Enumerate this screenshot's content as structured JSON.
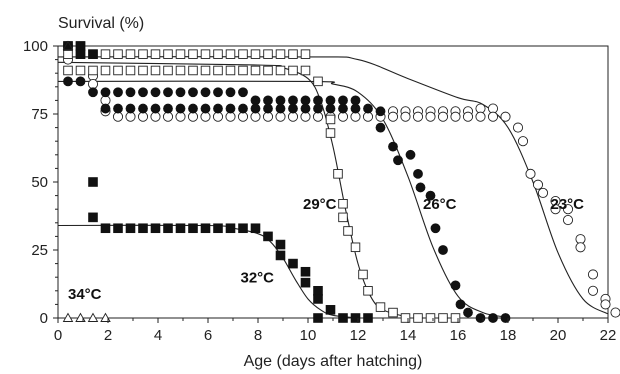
{
  "chart_data": {
    "type": "scatter",
    "title": "",
    "xlabel": "Age (days after hatching)",
    "ylabel": "Survival (%)",
    "xlim": [
      0,
      22
    ],
    "ylim": [
      0,
      100
    ],
    "xticks": [
      "0",
      "2",
      "4",
      "6",
      "8",
      "10",
      "12",
      "14",
      "16",
      "18",
      "20",
      "22"
    ],
    "yticks": [
      "0",
      "25",
      "50",
      "75",
      "100"
    ],
    "legend": "none",
    "grid": false,
    "series": [
      {
        "name": "23°C",
        "label_pos": [
          19.7,
          40
        ],
        "marker": "circle-open",
        "points": [
          [
            0.4,
            100
          ],
          [
            0.4,
            95
          ],
          [
            1.4,
            89
          ],
          [
            1.4,
            86
          ],
          [
            1.9,
            80
          ],
          [
            1.9,
            76
          ],
          [
            2.4,
            74
          ],
          [
            2.9,
            74
          ],
          [
            3.4,
            74
          ],
          [
            3.9,
            74
          ],
          [
            4.4,
            74
          ],
          [
            4.9,
            74
          ],
          [
            5.4,
            74
          ],
          [
            5.9,
            74
          ],
          [
            6.4,
            74
          ],
          [
            6.9,
            74
          ],
          [
            7.4,
            74
          ],
          [
            7.9,
            74
          ],
          [
            8.4,
            74
          ],
          [
            8.9,
            74
          ],
          [
            9.4,
            74
          ],
          [
            9.9,
            74
          ],
          [
            10.4,
            74
          ],
          [
            10.9,
            74
          ],
          [
            11.4,
            74
          ],
          [
            11.9,
            74
          ],
          [
            12.4,
            74
          ],
          [
            12.9,
            74
          ],
          [
            13.4,
            76
          ],
          [
            13.4,
            74
          ],
          [
            13.9,
            76
          ],
          [
            13.9,
            74
          ],
          [
            14.4,
            76
          ],
          [
            14.4,
            74
          ],
          [
            14.9,
            76
          ],
          [
            14.9,
            74
          ],
          [
            15.4,
            76
          ],
          [
            15.4,
            74
          ],
          [
            15.9,
            76
          ],
          [
            15.9,
            74
          ],
          [
            16.4,
            76
          ],
          [
            16.4,
            74
          ],
          [
            16.9,
            77
          ],
          [
            16.9,
            74
          ],
          [
            17.4,
            77
          ],
          [
            17.4,
            74
          ],
          [
            17.9,
            74
          ],
          [
            18.4,
            70
          ],
          [
            18.6,
            65
          ],
          [
            18.9,
            53
          ],
          [
            19.2,
            49
          ],
          [
            19.4,
            46
          ],
          [
            19.9,
            43
          ],
          [
            19.9,
            40
          ],
          [
            20.4,
            40
          ],
          [
            20.4,
            36
          ],
          [
            20.9,
            29
          ],
          [
            20.9,
            26
          ],
          [
            21.4,
            16
          ],
          [
            21.4,
            10
          ],
          [
            21.9,
            7
          ],
          [
            21.9,
            5
          ],
          [
            22.3,
            2
          ]
        ],
        "curve": [
          [
            0,
            96
          ],
          [
            10,
            96
          ],
          [
            12,
            95
          ],
          [
            14,
            88
          ],
          [
            16,
            81
          ],
          [
            17,
            78.5
          ],
          [
            18,
            70
          ],
          [
            19,
            50
          ],
          [
            20,
            24
          ],
          [
            21,
            7
          ],
          [
            22,
            1.5
          ]
        ]
      },
      {
        "name": "26°C",
        "label_pos": [
          14.6,
          40
        ],
        "marker": "circle-filled",
        "points": [
          [
            0.4,
            87
          ],
          [
            0.9,
            87
          ],
          [
            1.4,
            83
          ],
          [
            1.9,
            83
          ],
          [
            2.4,
            83
          ],
          [
            2.9,
            83
          ],
          [
            3.4,
            83
          ],
          [
            3.9,
            83
          ],
          [
            4.4,
            83
          ],
          [
            4.9,
            83
          ],
          [
            5.4,
            83
          ],
          [
            5.9,
            83
          ],
          [
            6.4,
            83
          ],
          [
            6.9,
            83
          ],
          [
            7.4,
            83
          ],
          [
            7.9,
            80
          ],
          [
            8.4,
            80
          ],
          [
            8.9,
            80
          ],
          [
            9.4,
            80
          ],
          [
            9.9,
            80
          ],
          [
            10.4,
            80
          ],
          [
            10.9,
            80
          ],
          [
            11.4,
            80
          ],
          [
            11.9,
            80
          ],
          [
            1.9,
            77
          ],
          [
            2.4,
            77
          ],
          [
            2.9,
            77
          ],
          [
            3.4,
            77
          ],
          [
            3.9,
            77
          ],
          [
            4.4,
            77
          ],
          [
            4.9,
            77
          ],
          [
            5.4,
            77
          ],
          [
            5.9,
            77
          ],
          [
            6.4,
            77
          ],
          [
            6.9,
            77
          ],
          [
            7.4,
            77
          ],
          [
            7.9,
            77
          ],
          [
            8.4,
            77
          ],
          [
            8.9,
            77
          ],
          [
            9.4,
            77
          ],
          [
            9.9,
            77
          ],
          [
            10.4,
            77
          ],
          [
            10.9,
            77
          ],
          [
            11.4,
            77
          ],
          [
            11.9,
            77
          ],
          [
            12.4,
            77
          ],
          [
            12.9,
            76
          ],
          [
            12.9,
            70
          ],
          [
            13.4,
            63
          ],
          [
            13.6,
            58
          ],
          [
            14.1,
            60
          ],
          [
            14.4,
            53
          ],
          [
            14.5,
            48
          ],
          [
            14.9,
            45
          ],
          [
            15.1,
            33
          ],
          [
            15.4,
            25
          ],
          [
            15.9,
            12
          ],
          [
            16.1,
            5
          ],
          [
            16.4,
            2
          ],
          [
            16.9,
            0
          ],
          [
            17.4,
            0
          ],
          [
            17.9,
            0
          ]
        ],
        "curve": [
          [
            0,
            87
          ],
          [
            10,
            87
          ],
          [
            11,
            86
          ],
          [
            12,
            83
          ],
          [
            13,
            73
          ],
          [
            14,
            52
          ],
          [
            15,
            26
          ],
          [
            16,
            8
          ],
          [
            17,
            2
          ],
          [
            18,
            0.3
          ]
        ]
      },
      {
        "name": "29°C",
        "label_pos": [
          9.8,
          40
        ],
        "marker": "square-open",
        "points": [
          [
            0.4,
            100
          ],
          [
            0.9,
            100
          ],
          [
            0.4,
            97
          ],
          [
            0.9,
            97
          ],
          [
            1.4,
            97
          ],
          [
            1.9,
            97
          ],
          [
            2.4,
            97
          ],
          [
            2.9,
            97
          ],
          [
            3.4,
            97
          ],
          [
            3.9,
            97
          ],
          [
            4.4,
            97
          ],
          [
            4.9,
            97
          ],
          [
            5.4,
            97
          ],
          [
            5.9,
            97
          ],
          [
            6.4,
            97
          ],
          [
            6.9,
            97
          ],
          [
            7.4,
            97
          ],
          [
            7.9,
            97
          ],
          [
            8.4,
            97
          ],
          [
            8.9,
            97
          ],
          [
            9.4,
            97
          ],
          [
            9.9,
            97
          ],
          [
            0.4,
            91
          ],
          [
            0.9,
            91
          ],
          [
            1.4,
            91
          ],
          [
            1.9,
            91
          ],
          [
            2.4,
            91
          ],
          [
            2.9,
            91
          ],
          [
            3.4,
            91
          ],
          [
            3.9,
            91
          ],
          [
            4.4,
            91
          ],
          [
            4.9,
            91
          ],
          [
            5.4,
            91
          ],
          [
            5.9,
            91
          ],
          [
            6.4,
            91
          ],
          [
            6.9,
            91
          ],
          [
            7.4,
            91
          ],
          [
            7.9,
            91
          ],
          [
            8.4,
            91
          ],
          [
            8.9,
            91
          ],
          [
            9.4,
            91
          ],
          [
            9.9,
            91
          ],
          [
            10.4,
            87
          ],
          [
            10.9,
            73
          ],
          [
            10.9,
            68
          ],
          [
            11.2,
            53
          ],
          [
            11.4,
            42
          ],
          [
            11.4,
            37
          ],
          [
            11.6,
            32
          ],
          [
            11.9,
            26
          ],
          [
            12.2,
            16
          ],
          [
            12.4,
            10
          ],
          [
            12.9,
            4
          ],
          [
            13.4,
            2
          ],
          [
            13.9,
            0
          ],
          [
            14.4,
            0
          ],
          [
            14.9,
            0
          ],
          [
            15.4,
            0
          ],
          [
            15.9,
            0
          ]
        ],
        "curve": [
          [
            0,
            94
          ],
          [
            8,
            93
          ],
          [
            9,
            92
          ],
          [
            10,
            88
          ],
          [
            10.5,
            80
          ],
          [
            11,
            63
          ],
          [
            11.5,
            40
          ],
          [
            12,
            20
          ],
          [
            12.5,
            8
          ],
          [
            13,
            3
          ],
          [
            14,
            0.3
          ]
        ]
      },
      {
        "name": "32°C",
        "label_pos": [
          7.3,
          13
        ],
        "marker": "square-filled",
        "points": [
          [
            0.4,
            100
          ],
          [
            0.9,
            100
          ],
          [
            0.9,
            97
          ],
          [
            1.4,
            97
          ],
          [
            1.4,
            50
          ],
          [
            1.4,
            37
          ],
          [
            1.9,
            33
          ],
          [
            2.4,
            33
          ],
          [
            2.9,
            33
          ],
          [
            3.4,
            33
          ],
          [
            3.9,
            33
          ],
          [
            4.4,
            33
          ],
          [
            4.9,
            33
          ],
          [
            5.4,
            33
          ],
          [
            5.9,
            33
          ],
          [
            6.4,
            33
          ],
          [
            6.9,
            33
          ],
          [
            7.4,
            33
          ],
          [
            7.9,
            33
          ],
          [
            8.4,
            30
          ],
          [
            8.9,
            27
          ],
          [
            8.9,
            23
          ],
          [
            9.4,
            20
          ],
          [
            9.9,
            17
          ],
          [
            9.9,
            13
          ],
          [
            10.4,
            10
          ],
          [
            10.4,
            7
          ],
          [
            10.9,
            3
          ],
          [
            11.4,
            0
          ],
          [
            11.9,
            0
          ],
          [
            12.4,
            0
          ],
          [
            10.4,
            0
          ]
        ],
        "curve": [
          [
            0,
            34
          ],
          [
            6,
            34
          ],
          [
            7,
            33
          ],
          [
            8,
            31
          ],
          [
            8.5,
            28
          ],
          [
            9,
            22
          ],
          [
            9.5,
            14
          ],
          [
            10,
            7
          ],
          [
            10.5,
            3
          ],
          [
            11,
            1
          ],
          [
            12,
            0
          ]
        ]
      },
      {
        "name": "34°C",
        "label_pos": [
          0.4,
          7
        ],
        "marker": "triangle-open",
        "points": [
          [
            0.4,
            0
          ],
          [
            0.9,
            0
          ],
          [
            1.4,
            0
          ],
          [
            1.9,
            0
          ],
          [
            0.4,
            100
          ]
        ]
      }
    ]
  }
}
